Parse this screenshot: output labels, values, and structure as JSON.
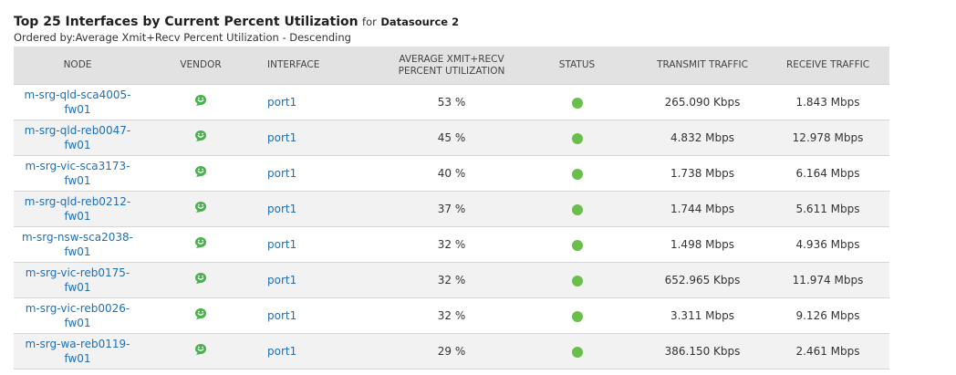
{
  "header": {
    "title": "Top 25 Interfaces by Current Percent Utilization",
    "for_label": "for",
    "datasource": "Datasource 2",
    "subtitle": "Ordered by:Average Xmit+Recv Percent Utilization - Descending"
  },
  "columns": {
    "node": "NODE",
    "vendor": "VENDOR",
    "interface": "INTERFACE",
    "util_line1": "AVERAGE XMIT+RECV",
    "util_line2": "PERCENT UTILIZATION",
    "status": "STATUS",
    "transmit": "TRANSMIT TRAFFIC",
    "receive": "RECEIVE TRAFFIC"
  },
  "colors": {
    "status_up": "#6abf4b",
    "vendor_icon": "#4caf50",
    "link": "#1f6fb6"
  },
  "vendor_icon_name": "fortinet-vendor-icon",
  "rows": [
    {
      "node_line1": "m-srg-qld-sca4005-",
      "node_line2": "fw01",
      "interface": "port1",
      "util": "53 %",
      "transmit": "265.090 Kbps",
      "receive": "1.843 Mbps"
    },
    {
      "node_line1": "m-srg-qld-reb0047-",
      "node_line2": "fw01",
      "interface": "port1",
      "util": "45 %",
      "transmit": "4.832 Mbps",
      "receive": "12.978 Mbps"
    },
    {
      "node_line1": "m-srg-vic-sca3173-",
      "node_line2": "fw01",
      "interface": "port1",
      "util": "40 %",
      "transmit": "1.738 Mbps",
      "receive": "6.164 Mbps"
    },
    {
      "node_line1": "m-srg-qld-reb0212-",
      "node_line2": "fw01",
      "interface": "port1",
      "util": "37 %",
      "transmit": "1.744 Mbps",
      "receive": "5.611 Mbps"
    },
    {
      "node_line1": "m-srg-nsw-sca2038-",
      "node_line2": "fw01",
      "interface": "port1",
      "util": "32 %",
      "transmit": "1.498 Mbps",
      "receive": "4.936 Mbps"
    },
    {
      "node_line1": "m-srg-vic-reb0175-",
      "node_line2": "fw01",
      "interface": "port1",
      "util": "32 %",
      "transmit": "652.965 Kbps",
      "receive": "11.974 Mbps"
    },
    {
      "node_line1": "m-srg-vic-reb0026-",
      "node_line2": "fw01",
      "interface": "port1",
      "util": "32 %",
      "transmit": "3.311 Mbps",
      "receive": "9.126 Mbps"
    },
    {
      "node_line1": "m-srg-wa-reb0119-",
      "node_line2": "fw01",
      "interface": "port1",
      "util": "29 %",
      "transmit": "386.150 Kbps",
      "receive": "2.461 Mbps"
    }
  ]
}
